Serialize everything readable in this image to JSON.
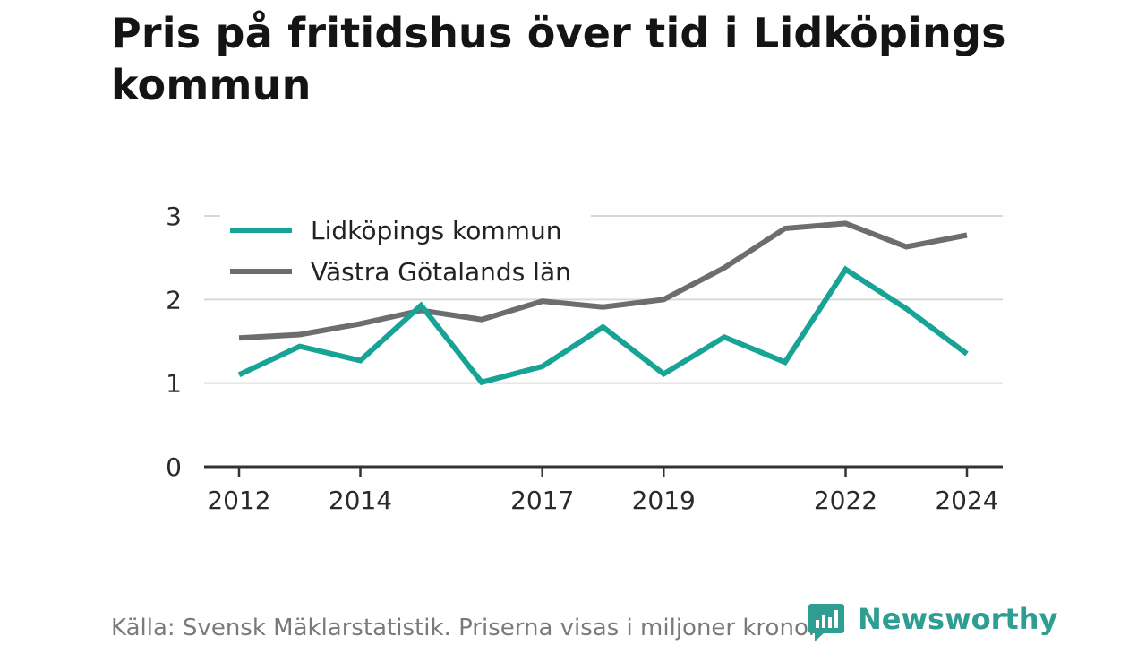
{
  "title": "Pris på fritidshus över tid i Lidköpings kommun",
  "source_text": "Källa: Svensk Mäklarstatistik. Priserna visas i miljoner kronor.",
  "brand": {
    "name": "Newsworthy",
    "color": "#2e9d92"
  },
  "chart_data": {
    "type": "line",
    "title": "Pris på fritidshus över tid i Lidköpings kommun",
    "xlabel": "",
    "ylabel": "",
    "x": [
      2012,
      2013,
      2014,
      2015,
      2016,
      2017,
      2018,
      2019,
      2020,
      2021,
      2022,
      2023,
      2024
    ],
    "x_tick_labels": [
      "2012",
      "2014",
      "2017",
      "2019",
      "2022",
      "2024"
    ],
    "y_tick_labels": [
      "0",
      "1",
      "2",
      "3"
    ],
    "ylim": [
      0,
      3
    ],
    "grid": true,
    "legend_position": "top-left",
    "series": [
      {
        "name": "Lidköpings kommun",
        "color": "#17a497",
        "values": [
          1.1,
          1.44,
          1.27,
          1.93,
          1.01,
          1.2,
          1.67,
          1.11,
          1.55,
          1.25,
          2.36,
          1.89,
          1.35
        ]
      },
      {
        "name": "Västra Götalands län",
        "color": "#6d6d70",
        "values": [
          1.54,
          1.58,
          1.71,
          1.87,
          1.76,
          1.98,
          1.91,
          2.0,
          2.38,
          2.85,
          2.91,
          2.63,
          2.77
        ]
      }
    ]
  }
}
